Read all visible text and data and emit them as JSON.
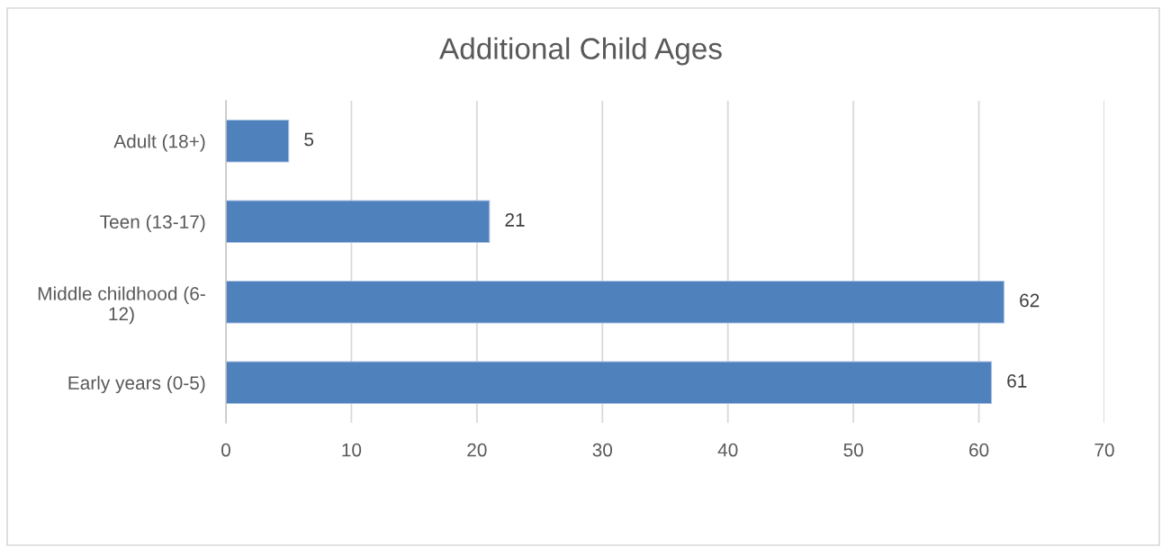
{
  "chart_data": {
    "type": "bar",
    "title": "Additional Child Ages",
    "orientation": "horizontal",
    "categories": [
      "Adult (18+)",
      "Teen (13-17)",
      "Middle childhood (6-12)",
      "Early years (0-5)"
    ],
    "values": [
      5,
      21,
      62,
      61
    ],
    "color": "#4f81bd",
    "xlim": [
      0,
      70
    ],
    "xticks": [
      0,
      10,
      20,
      30,
      40,
      50,
      60,
      70
    ],
    "grid": "x",
    "data_labels": true
  }
}
